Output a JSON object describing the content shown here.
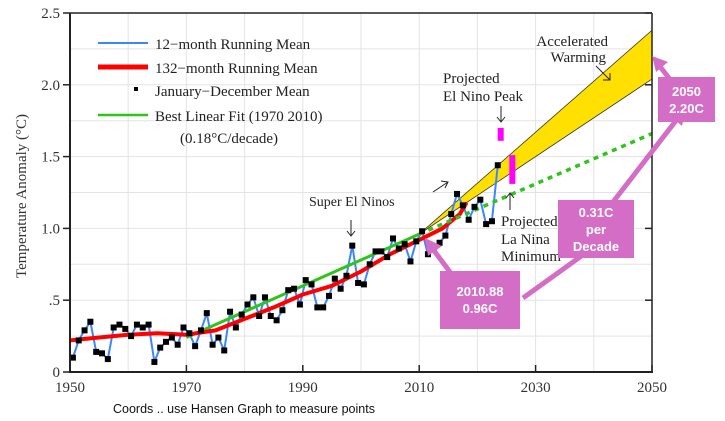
{
  "chart_data": {
    "type": "line",
    "title": "",
    "xlabel": "",
    "ylabel": "Temperature Anomaly (°C)",
    "xlim": [
      1950,
      2050
    ],
    "ylim": [
      0,
      2.5
    ],
    "grid": true,
    "x_ticks": [
      1950,
      1970,
      1990,
      2010,
      2030,
      2050
    ],
    "x_tick_labels": [
      "1950",
      "1970",
      "1990",
      "2010",
      "2030",
      "2050"
    ],
    "y_ticks": [
      0,
      0.5,
      1.0,
      1.5,
      2.0,
      2.5
    ],
    "y_tick_labels": [
      "0",
      ".5",
      "1.0",
      "1.5",
      "2.0",
      "2.5"
    ],
    "legend_position": "top-left",
    "legend": [
      {
        "label": "12−month Running Mean",
        "color": "#3a86ff"
      },
      {
        "label": "132−month Running Mean",
        "color": "#ff0000"
      },
      {
        "label": "January−December Mean",
        "color": "#000000"
      },
      {
        "label": "Best Linear Fit (1970  2010)",
        "color": "#2ec41a"
      },
      {
        "label": "(0.18°C/decade)",
        "color": ""
      }
    ],
    "annual_means": {
      "name": "January−December Mean",
      "x": [
        1950,
        1951,
        1952,
        1953,
        1954,
        1955,
        1956,
        1957,
        1958,
        1959,
        1960,
        1961,
        1962,
        1963,
        1964,
        1965,
        1966,
        1967,
        1968,
        1969,
        1970,
        1971,
        1972,
        1973,
        1974,
        1975,
        1976,
        1977,
        1978,
        1979,
        1980,
        1981,
        1982,
        1983,
        1984,
        1985,
        1986,
        1987,
        1988,
        1989,
        1990,
        1991,
        1992,
        1993,
        1994,
        1995,
        1996,
        1997,
        1998,
        1999,
        2000,
        2001,
        2002,
        2003,
        2004,
        2005,
        2006,
        2007,
        2008,
        2009,
        2010,
        2011,
        2012,
        2013,
        2014,
        2015,
        2016,
        2017,
        2018,
        2019,
        2020,
        2021,
        2022,
        2023
      ],
      "y": [
        0.1,
        0.22,
        0.29,
        0.35,
        0.14,
        0.13,
        0.09,
        0.31,
        0.33,
        0.3,
        0.25,
        0.33,
        0.31,
        0.33,
        0.07,
        0.17,
        0.21,
        0.24,
        0.19,
        0.31,
        0.27,
        0.18,
        0.29,
        0.41,
        0.19,
        0.24,
        0.15,
        0.42,
        0.31,
        0.4,
        0.47,
        0.52,
        0.39,
        0.52,
        0.39,
        0.36,
        0.43,
        0.57,
        0.58,
        0.47,
        0.64,
        0.61,
        0.45,
        0.45,
        0.53,
        0.65,
        0.58,
        0.67,
        0.88,
        0.62,
        0.61,
        0.75,
        0.84,
        0.84,
        0.8,
        0.93,
        0.86,
        0.89,
        0.77,
        0.91,
        0.98,
        0.82,
        0.86,
        0.9,
        0.95,
        1.1,
        1.24,
        1.16,
        1.06,
        1.15,
        1.2,
        1.03,
        1.05,
        1.44
      ]
    },
    "series": [
      {
        "name": "132−month Running Mean",
        "x": [
          1950,
          1955,
          1960,
          1965,
          1970,
          1975,
          1980,
          1985,
          1990,
          1995,
          2000,
          2005,
          2010,
          2014,
          2017,
          2018
        ],
        "y": [
          0.22,
          0.24,
          0.26,
          0.27,
          0.26,
          0.29,
          0.37,
          0.45,
          0.54,
          0.6,
          0.7,
          0.82,
          0.92,
          1.0,
          1.1,
          1.17
        ]
      },
      {
        "name": "Best Linear Fit (1970  2010)",
        "x": [
          1970,
          2010
        ],
        "y": [
          0.24,
          0.96
        ]
      },
      {
        "name": "Extension of linear fit (dotted)",
        "x": [
          2010,
          2050
        ],
        "y": [
          0.96,
          1.66
        ]
      },
      {
        "name": "Accelerated Warming band upper",
        "x": [
          2010,
          2050
        ],
        "y": [
          0.96,
          2.38
        ]
      },
      {
        "name": "Accelerated Warming band lower",
        "x": [
          2010,
          2050
        ],
        "y": [
          0.96,
          2.04
        ]
      }
    ],
    "projected_markers": [
      {
        "name": "Projected El Nino Peak",
        "x": 2024,
        "y_range": [
          1.61,
          1.7
        ],
        "color": "#ff00ff"
      },
      {
        "name": "Projected La Nina Minimum",
        "x": 2026,
        "y_range": [
          1.31,
          1.51
        ],
        "color": "#ff00ff"
      }
    ],
    "annotations": [
      {
        "text": "Super El Ninos",
        "x": 1998
      },
      {
        "text": "Accelerated Warming"
      },
      {
        "text": "Projected El Nino Peak"
      },
      {
        "text": "Projected La Nina Minimum"
      }
    ],
    "callouts": [
      {
        "lines": [
          "2050",
          "2.20C"
        ],
        "points_to": {
          "x": 2050,
          "y": 2.2
        }
      },
      {
        "lines": [
          "0.31C",
          "per",
          "Decade"
        ]
      },
      {
        "lines": [
          "2010.88",
          "0.96C"
        ],
        "points_to": {
          "x": 2010.88,
          "y": 0.96
        }
      }
    ]
  },
  "labels": {
    "ylabel": "Temperature Anomaly (°C)",
    "super_el_ninos": "Super El Ninos",
    "accel_1": "Accelerated",
    "accel_2": "Warming",
    "elnino_1": "Projected",
    "elnino_2": "El Nino Peak",
    "lanina_1": "Projected",
    "lanina_2": "La Nina",
    "lanina_3": "Minimum",
    "caption": "Coords .. use Hansen Graph to measure points"
  },
  "callouts": {
    "c2050": {
      "line1": "2050",
      "line2": "2.20C"
    },
    "rate": {
      "line1": "0.31C",
      "line2": "per",
      "line3": "Decade"
    },
    "c2010": {
      "line1": "2010.88",
      "line2": "0.96C"
    }
  },
  "colors": {
    "accent_callout": "#d46dc6",
    "band_fill": "#ffe000",
    "magenta": "#ff00ff"
  }
}
